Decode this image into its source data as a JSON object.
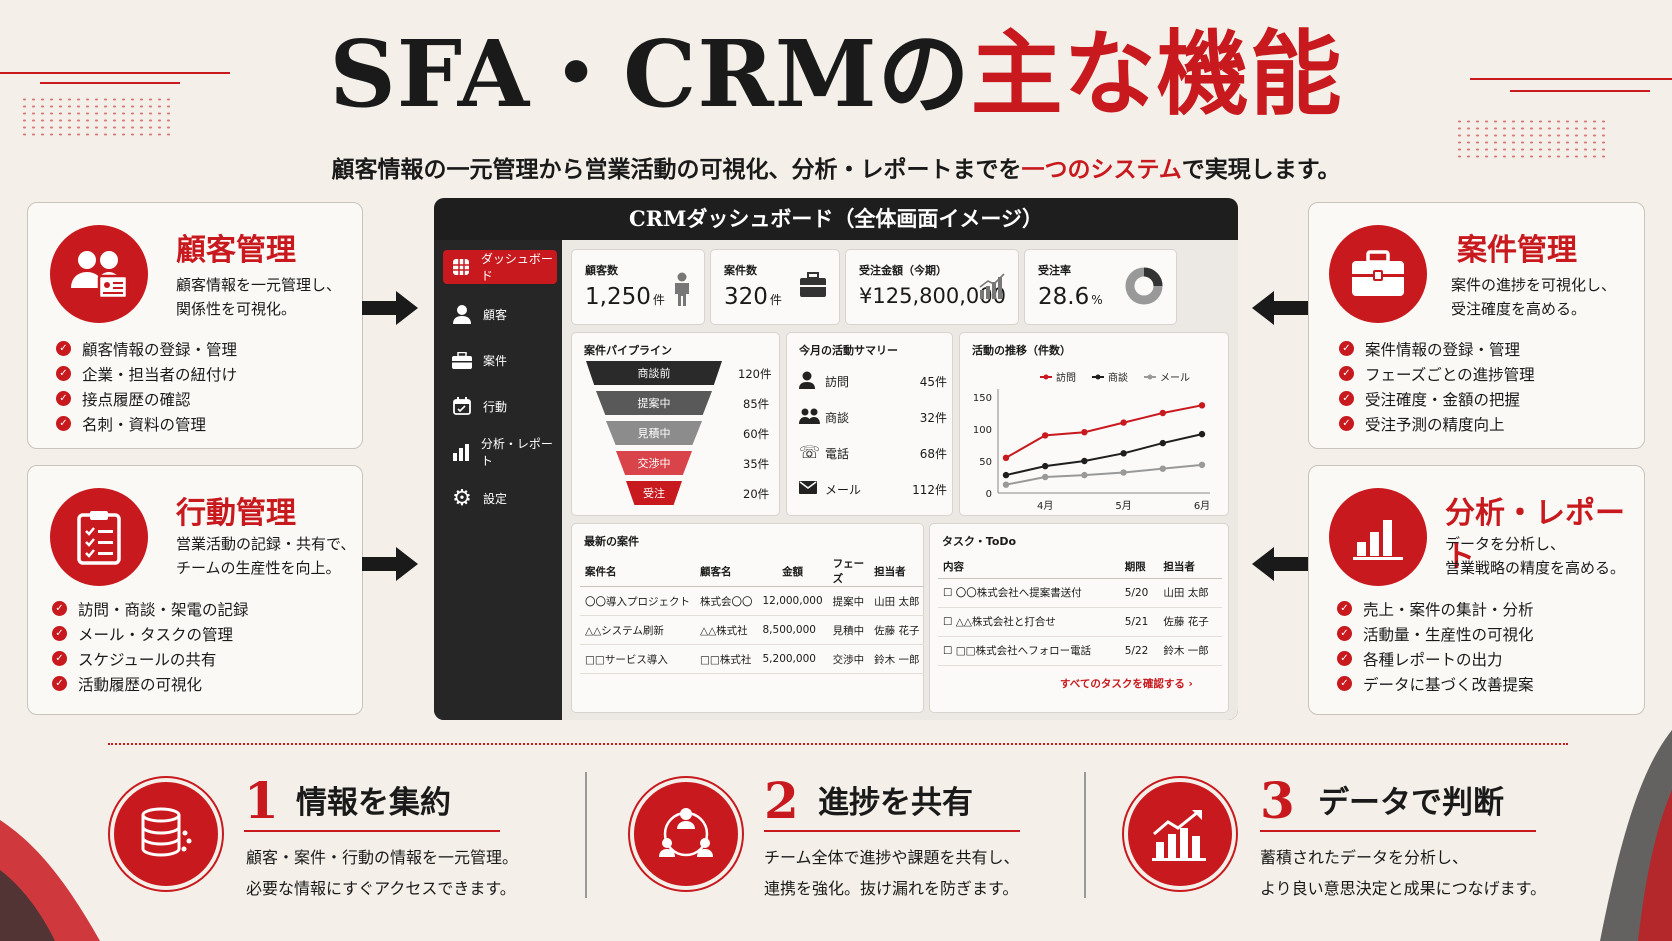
{
  "header": {
    "title_main": "SFA・CRMの",
    "title_accent": "主な機能",
    "subtitle_pre": "顧客情報の一元管理から営業活動の可視化、分析・レポートまでを",
    "subtitle_accent": "一つのシステム",
    "subtitle_post": "で実現します。"
  },
  "colors": {
    "accent": "#c8191e",
    "dark": "#1e1e1e",
    "background": "#f4f0e9"
  },
  "cards": {
    "customer": {
      "icon": "customer-people-icon",
      "title": "顧客管理",
      "desc": [
        "顧客情報を一元管理し、",
        "関係性を可視化。"
      ],
      "items": [
        "顧客情報の登録・管理",
        "企業・担当者の紐付け",
        "接点履歴の確認",
        "名刺・資料の管理"
      ]
    },
    "activity": {
      "icon": "clipboard-icon",
      "title": "行動管理",
      "desc": [
        "営業活動の記録・共有で、",
        "チームの生産性を向上。"
      ],
      "items": [
        "訪問・商談・架電の記録",
        "メール・タスクの管理",
        "スケジュールの共有",
        "活動履歴の可視化"
      ]
    },
    "deal": {
      "icon": "briefcase-icon",
      "title": "案件管理",
      "desc": [
        "案件の進捗を可視化し、",
        "受注確度を高める。"
      ],
      "items": [
        "案件情報の登録・管理",
        "フェーズごとの進捗管理",
        "受注確度・金額の把握",
        "受注予測の精度向上"
      ]
    },
    "report": {
      "icon": "bar-chart-icon",
      "title": "分析・レポート",
      "desc": [
        "データを分析し、",
        "営業戦略の精度を高める。"
      ],
      "items": [
        "売上・案件の集計・分析",
        "活動量・生産性の可視化",
        "各種レポートの出力",
        "データに基づく改善提案"
      ]
    }
  },
  "dashboard": {
    "title": "CRMダッシュボード（全体画面イメージ）",
    "nav": [
      {
        "label": "ダッシュボード",
        "icon": "grid-icon",
        "active": true
      },
      {
        "label": "顧客",
        "icon": "person-icon"
      },
      {
        "label": "案件",
        "icon": "briefcase-icon"
      },
      {
        "label": "行動",
        "icon": "calendar-icon"
      },
      {
        "label": "分析・レポート",
        "icon": "bar-chart-icon"
      },
      {
        "label": "設定",
        "icon": "gear-icon"
      }
    ],
    "kpis": [
      {
        "label": "顧客数",
        "value": "1,250",
        "unit": "件",
        "icon": "person-icon"
      },
      {
        "label": "案件数",
        "value": "320",
        "unit": "件",
        "icon": "briefcase-icon"
      },
      {
        "label": "受注金額（今期）",
        "value": "¥125,800,000",
        "unit": "",
        "icon": "bar-chart-icon"
      },
      {
        "label": "受注率",
        "value": "28.6",
        "unit": "%",
        "icon": "donut-chart-icon"
      }
    ],
    "pipeline": {
      "title": "案件パイプライン",
      "stages": [
        {
          "label": "商談前",
          "value": "120件"
        },
        {
          "label": "提案中",
          "value": "85件"
        },
        {
          "label": "見積中",
          "value": "60件"
        },
        {
          "label": "交渉中",
          "value": "35件"
        },
        {
          "label": "受注",
          "value": "20件"
        }
      ]
    },
    "summary": {
      "title": "今月の活動サマリー",
      "rows": [
        {
          "label": "訪問",
          "value": "45件",
          "icon": "person-icon"
        },
        {
          "label": "商談",
          "value": "32件",
          "icon": "people-icon"
        },
        {
          "label": "電話",
          "value": "68件",
          "icon": "phone-icon"
        },
        {
          "label": "メール",
          "value": "112件",
          "icon": "mail-icon"
        }
      ]
    },
    "trend": {
      "title": "活動の推移（件数）"
    },
    "deals_table": {
      "title": "最新の案件",
      "headers": [
        "案件名",
        "顧客名",
        "金額",
        "フェーズ",
        "担当者"
      ],
      "rows": [
        [
          "〇〇導入プロジェクト",
          "株式会〇〇",
          "12,000,000",
          "提案中",
          "山田 太郎"
        ],
        [
          "△△システム刷新",
          "△△株式社",
          "8,500,000",
          "見積中",
          "佐藤 花子"
        ],
        [
          "□□サービス導入",
          "□□株式社",
          "5,200,000",
          "交渉中",
          "鈴木 一郎"
        ]
      ]
    },
    "tasks": {
      "title": "タスク・ToDo",
      "headers": [
        "内容",
        "期限",
        "担当者"
      ],
      "rows": [
        [
          "〇〇株式会社へ提案書送付",
          "5/20",
          "山田 太郎"
        ],
        [
          "△△株式会社と打合せ",
          "5/21",
          "佐藤 花子"
        ],
        [
          "□□株式会社へフォロー電話",
          "5/22",
          "鈴木 一郎"
        ]
      ],
      "link": "すべてのタスクを確認する ›"
    }
  },
  "chart_data": {
    "type": "line",
    "title": "活動の推移（件数）",
    "categories": [
      "4月",
      "5月",
      "6月"
    ],
    "x": [
      0,
      1,
      2,
      3,
      4,
      5
    ],
    "series": [
      {
        "name": "訪問",
        "color": "#c8191e",
        "values": [
          55,
          90,
          95,
          110,
          125,
          137
        ]
      },
      {
        "name": "商談",
        "color": "#1e1e1e",
        "values": [
          28,
          42,
          50,
          62,
          78,
          92
        ]
      },
      {
        "name": "メール",
        "color": "#999999",
        "values": [
          13,
          25,
          28,
          32,
          38,
          44
        ]
      }
    ],
    "yticks": [
      0,
      50,
      100,
      150
    ],
    "ylim": [
      0,
      150
    ],
    "legend": "top",
    "grid": false
  },
  "features": [
    {
      "num": "1",
      "title": "情報を集約",
      "icon": "database-icon",
      "desc": [
        "顧客・案件・行動の情報を一元管理。",
        "必要な情報にすぐアクセスできます。"
      ]
    },
    {
      "num": "2",
      "title": "進捗を共有",
      "icon": "team-network-icon",
      "desc": [
        "チーム全体で進捗や課題を共有し、",
        "連携を強化。抜け漏れを防ぎます。"
      ]
    },
    {
      "num": "3",
      "title": "データで判断",
      "icon": "growth-chart-icon",
      "desc": [
        "蓄積されたデータを分析し、",
        "より良い意思決定と成果につなげます。"
      ]
    }
  ]
}
